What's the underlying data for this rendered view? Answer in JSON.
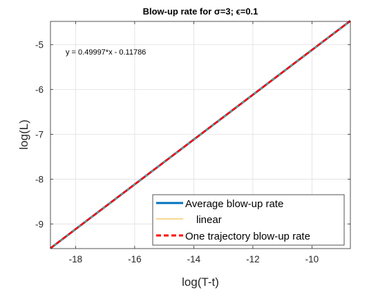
{
  "chart_data": {
    "type": "line",
    "title": "Blow-up rate for σ=3; ϵ=0.1",
    "xlabel": "log(T-t)",
    "ylabel": "log(L)",
    "xlim": [
      -18.85,
      -8.7
    ],
    "ylim": [
      -9.55,
      -4.48
    ],
    "xticks": [
      -18,
      -16,
      -14,
      -12,
      -10
    ],
    "yticks": [
      -9,
      -8,
      -7,
      -6,
      -5
    ],
    "xtick_labels": [
      "-18",
      "-16",
      "-14",
      "-12",
      "-10"
    ],
    "ytick_labels": [
      "-9",
      "-8",
      "-7",
      "-6",
      "-5"
    ],
    "grid": true,
    "legend_position": "bottom-right",
    "annotation": "y = 0.49997*x - 0.11786",
    "series": [
      {
        "name": "Average blow-up rate",
        "style": "solid",
        "color": "#0072BD",
        "x": [
          -18.85,
          -8.7
        ],
        "y": [
          -9.5426,
          -4.4675
        ]
      },
      {
        "name": "linear",
        "style": "solid",
        "color": "#EDB120",
        "x": [
          -18.85,
          -8.7
        ],
        "y": [
          -9.5423,
          -4.4676
        ]
      },
      {
        "name": "One trajectory blow-up rate",
        "style": "dashed",
        "color": "#FF0000",
        "x": [
          -18.85,
          -8.7
        ],
        "y": [
          -9.5426,
          -4.4675
        ]
      }
    ]
  }
}
